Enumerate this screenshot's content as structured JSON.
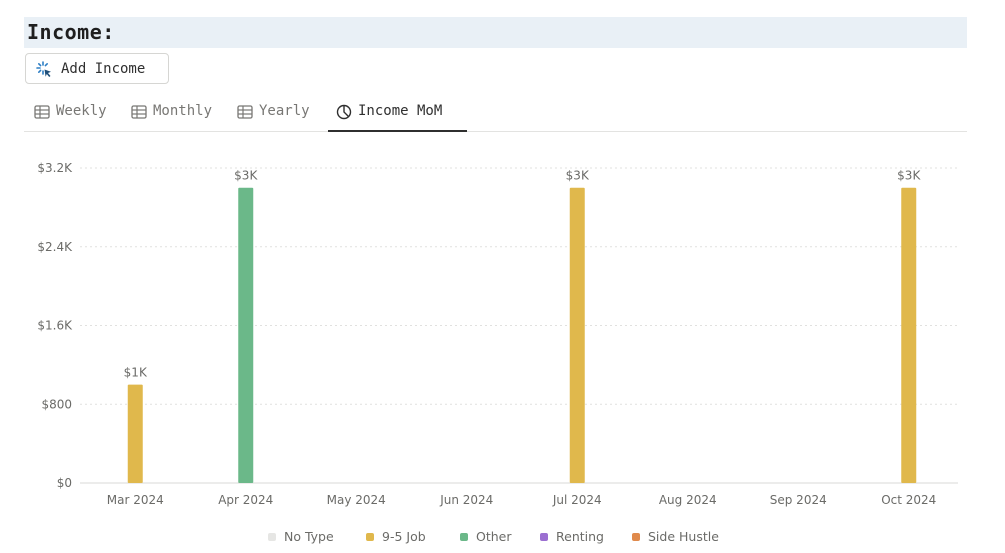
{
  "header": {
    "title": "Income:"
  },
  "toolbar": {
    "add_label": "Add Income",
    "add_icon": "sparkle-cursor-icon"
  },
  "tabs": [
    {
      "label": "Weekly",
      "icon": "table-icon",
      "active": false
    },
    {
      "label": "Monthly",
      "icon": "table-icon",
      "active": false
    },
    {
      "label": "Yearly",
      "icon": "table-icon",
      "active": false
    },
    {
      "label": "Income MoM",
      "icon": "pie-chart-icon",
      "active": true
    }
  ],
  "chart_data": {
    "type": "bar",
    "categories": [
      "Mar 2024",
      "Apr 2024",
      "May 2024",
      "Jun 2024",
      "Jul 2024",
      "Aug 2024",
      "Sep 2024",
      "Oct 2024"
    ],
    "series": [
      {
        "name": "No Type",
        "color": "#e6e6e4",
        "values": [
          0,
          0,
          0,
          0,
          0,
          0,
          0,
          0
        ]
      },
      {
        "name": "9-5 Job",
        "color": "#e0b84c",
        "values": [
          1000,
          0,
          0,
          0,
          3000,
          0,
          0,
          3000
        ]
      },
      {
        "name": "Other",
        "color": "#6bb889",
        "values": [
          0,
          3000,
          0,
          0,
          0,
          0,
          0,
          0
        ]
      },
      {
        "name": "Renting",
        "color": "#9b6fd1",
        "values": [
          0,
          0,
          0,
          0,
          0,
          0,
          0,
          0
        ]
      },
      {
        "name": "Side Hustle",
        "color": "#e08a4c",
        "values": [
          0,
          0,
          0,
          0,
          0,
          0,
          0,
          0
        ]
      }
    ],
    "data_labels": [
      "$1K",
      "$3K",
      "",
      "",
      "$3K",
      "",
      "",
      "$3K"
    ],
    "yticks": [
      0,
      800,
      1600,
      2400,
      3200
    ],
    "ytick_labels": [
      "$0",
      "$800",
      "$1.6K",
      "$2.4K",
      "$3.2K"
    ],
    "ylim": [
      0,
      3200
    ],
    "grid": true,
    "legend_position": "bottom-center"
  }
}
